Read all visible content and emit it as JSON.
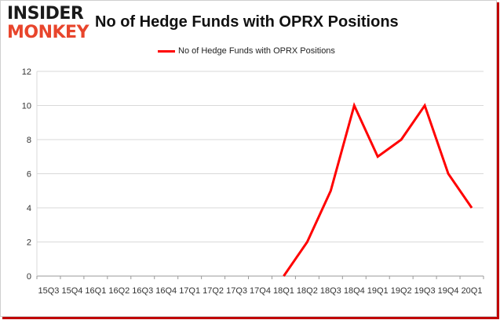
{
  "logo": {
    "line1": "INSIDER",
    "line2": "MONKEY"
  },
  "chart_data": {
    "type": "line",
    "title": "No of Hedge Funds with OPRX Positions",
    "legend_position": "top-center",
    "grid": true,
    "ylim": [
      0,
      12
    ],
    "yticks": [
      "0",
      "2",
      "4",
      "6",
      "8",
      "10",
      "12"
    ],
    "categories": [
      "15Q3",
      "15Q4",
      "16Q1",
      "16Q2",
      "16Q3",
      "16Q4",
      "17Q1",
      "17Q2",
      "17Q3",
      "17Q4",
      "18Q1",
      "18Q2",
      "18Q3",
      "18Q4",
      "19Q1",
      "19Q2",
      "19Q3",
      "19Q4",
      "20Q1"
    ],
    "series": [
      {
        "name": "No of Hedge Funds with OPRX Positions",
        "color": "#ff0000",
        "values": [
          null,
          null,
          null,
          null,
          null,
          null,
          null,
          null,
          null,
          null,
          0,
          2,
          5,
          10,
          7,
          8,
          10,
          6,
          4
        ]
      }
    ]
  }
}
